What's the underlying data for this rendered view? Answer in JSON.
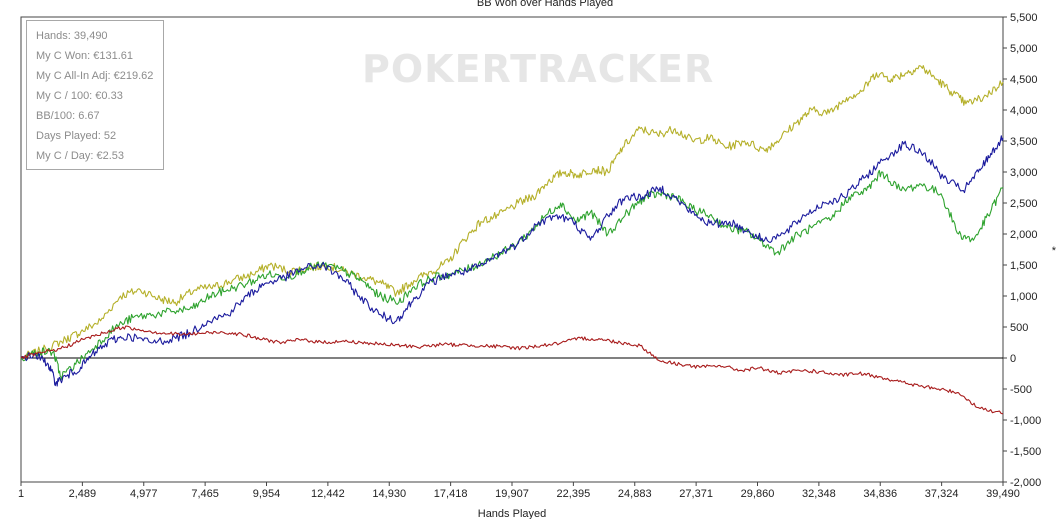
{
  "chart_data": {
    "type": "line",
    "title": "BB Won over Hands Played",
    "xlabel": "Hands Played",
    "ylabel": "*",
    "xlim": [
      1,
      39490
    ],
    "ylim": [
      -2000,
      5500
    ],
    "x_ticks": [
      "1",
      "2,489",
      "4,977",
      "7,465",
      "9,954",
      "12,442",
      "14,930",
      "17,418",
      "19,907",
      "22,395",
      "24,883",
      "27,371",
      "29,860",
      "32,348",
      "34,836",
      "37,324",
      "39,490"
    ],
    "y_ticks": [
      "-2,000",
      "-1,500",
      "-1,000",
      "-500",
      "0",
      "500",
      "1,000",
      "1,500",
      "2,000",
      "2,500",
      "3,000",
      "3,500",
      "4,000",
      "4,500",
      "5,000",
      "5,500"
    ],
    "y_axis_position": "right",
    "watermark": "POKERTRACKER",
    "series": [
      {
        "color": "#b5b02a",
        "x": [
          1,
          1000,
          1800,
          2400,
          3200,
          4000,
          4800,
          5600,
          6200,
          7000,
          7800,
          8500,
          9300,
          10000,
          10800,
          11600,
          12300,
          13000,
          13800,
          14500,
          15100,
          15800,
          16500,
          17200,
          17800,
          18500,
          19200,
          20000,
          20600,
          21200,
          21800,
          22400,
          23000,
          23600,
          24200,
          24900,
          25600,
          26300,
          27000,
          27700,
          28400,
          29100,
          29900,
          30400,
          31200,
          31800,
          32500,
          33200,
          33800,
          34400,
          35000,
          35600,
          36200,
          36800,
          37400,
          38000,
          38700,
          39490
        ],
        "y": [
          0,
          150,
          300,
          420,
          600,
          1000,
          1100,
          950,
          900,
          1100,
          1150,
          1250,
          1350,
          1500,
          1400,
          1450,
          1500,
          1400,
          1300,
          1200,
          1050,
          1250,
          1400,
          1550,
          1900,
          2200,
          2300,
          2500,
          2600,
          2850,
          3000,
          2950,
          3050,
          3000,
          3400,
          3700,
          3600,
          3700,
          3500,
          3550,
          3400,
          3500,
          3350,
          3500,
          3800,
          4000,
          3950,
          4200,
          4300,
          4600,
          4500,
          4600,
          4700,
          4500,
          4300,
          4100,
          4200,
          4450
        ]
      },
      {
        "color": "#2fa32f",
        "x": [
          1,
          700,
          1300,
          1600,
          2200,
          3000,
          3800,
          4500,
          5300,
          6100,
          6900,
          7600,
          8300,
          9100,
          9900,
          10700,
          11500,
          12200,
          13000,
          13700,
          14400,
          15200,
          15800,
          16600,
          17300,
          18100,
          18800,
          19600,
          20400,
          21100,
          21700,
          22300,
          22900,
          23600,
          24400,
          25100,
          25700,
          26300,
          27000,
          27700,
          28400,
          29100,
          29700,
          30400,
          31100,
          31800,
          32600,
          33300,
          34000,
          34600,
          35400,
          36200,
          37000,
          37700,
          38300,
          38900,
          39490
        ],
        "y": [
          0,
          100,
          100,
          -300,
          -100,
          200,
          500,
          650,
          700,
          750,
          800,
          1000,
          1100,
          1200,
          1350,
          1300,
          1450,
          1500,
          1400,
          1250,
          1000,
          900,
          1150,
          1300,
          1350,
          1450,
          1600,
          1750,
          2000,
          2300,
          2500,
          2200,
          2350,
          2000,
          2350,
          2600,
          2650,
          2600,
          2400,
          2300,
          2100,
          2050,
          1900,
          1700,
          1950,
          2100,
          2250,
          2600,
          2700,
          3000,
          2700,
          2800,
          2650,
          2000,
          1900,
          2300,
          2750
        ]
      },
      {
        "color": "#1c1c9e",
        "x": [
          1,
          600,
          1100,
          1400,
          1800,
          2400,
          3000,
          3700,
          4400,
          5200,
          6000,
          6800,
          7500,
          8300,
          9100,
          9800,
          10600,
          11400,
          12100,
          12900,
          13600,
          14400,
          15100,
          15700,
          16400,
          17200,
          17900,
          18600,
          19300,
          20000,
          20700,
          21500,
          22200,
          22900,
          23600,
          24300,
          25000,
          25700,
          26400,
          27100,
          27800,
          28500,
          29200,
          29900,
          30700,
          31500,
          32300,
          33100,
          33900,
          34700,
          35500,
          36300,
          37100,
          37900,
          38500,
          39000,
          39490
        ],
        "y": [
          0,
          50,
          -100,
          -400,
          -300,
          -150,
          100,
          300,
          350,
          250,
          300,
          400,
          600,
          700,
          1000,
          1200,
          1300,
          1450,
          1500,
          1300,
          1000,
          700,
          600,
          900,
          1200,
          1350,
          1400,
          1500,
          1700,
          1850,
          2150,
          2300,
          2200,
          1900,
          2300,
          2600,
          2600,
          2750,
          2550,
          2300,
          2150,
          2200,
          2050,
          1900,
          2000,
          2300,
          2500,
          2600,
          2900,
          3200,
          3450,
          3300,
          2900,
          2700,
          3000,
          3300,
          3550
        ]
      },
      {
        "color": "#a81c1c",
        "x": [
          1,
          800,
          1600,
          2500,
          3300,
          4100,
          4900,
          5700,
          6500,
          7300,
          8100,
          8900,
          9700,
          10500,
          11300,
          12100,
          12900,
          13700,
          14500,
          15300,
          16100,
          16900,
          17700,
          18500,
          19300,
          20100,
          20900,
          21700,
          22500,
          23300,
          24100,
          24900,
          25700,
          26500,
          27300,
          28100,
          28900,
          29700,
          30500,
          31300,
          32100,
          32900,
          33700,
          34500,
          35300,
          36100,
          36900,
          37700,
          38500,
          39490
        ],
        "y": [
          0,
          80,
          150,
          300,
          400,
          500,
          450,
          400,
          380,
          400,
          420,
          380,
          300,
          250,
          300,
          250,
          270,
          250,
          220,
          200,
          180,
          220,
          210,
          200,
          180,
          160,
          200,
          240,
          320,
          300,
          250,
          200,
          -50,
          -100,
          -150,
          -120,
          -200,
          -160,
          -250,
          -200,
          -220,
          -280,
          -250,
          -300,
          -380,
          -450,
          -500,
          -560,
          -800,
          -900
        ]
      }
    ]
  },
  "info_box": {
    "hands": "Hands: 39,490",
    "won": "My C Won: €131.61",
    "allin": "My C All-In Adj: €219.62",
    "per100": "My C / 100: €0.33",
    "bb100": "BB/100: 6.67",
    "days": "Days Played: 52",
    "perday": "My C / Day: €2.53"
  }
}
